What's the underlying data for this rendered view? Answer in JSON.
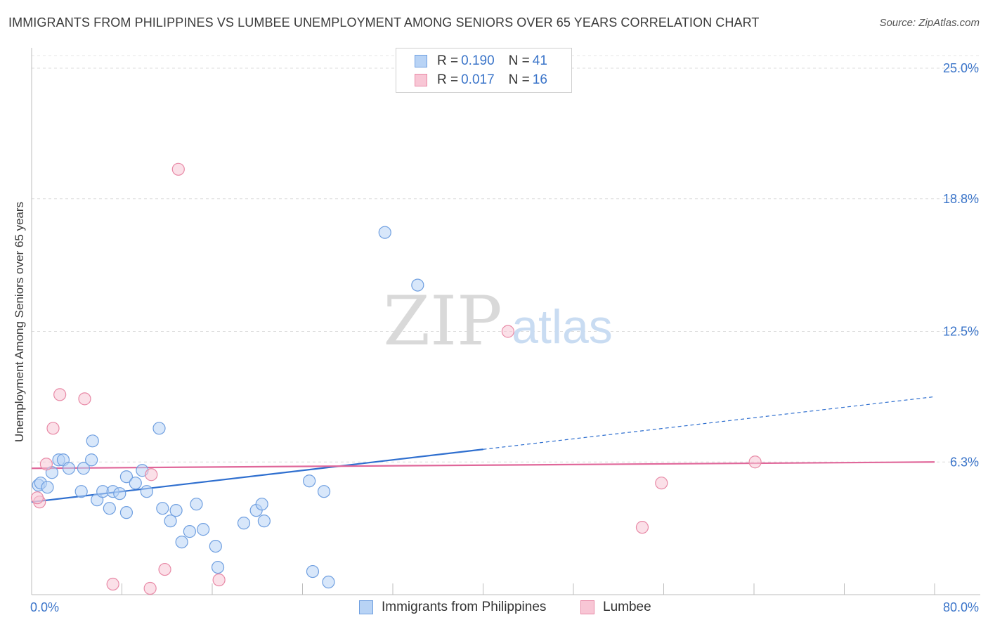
{
  "title": "IMMIGRANTS FROM PHILIPPINES VS LUMBEE UNEMPLOYMENT AMONG SENIORS OVER 65 YEARS CORRELATION CHART",
  "source": "Source: ZipAtlas.com",
  "watermark": {
    "zip": "ZIP",
    "atlas": "atlas"
  },
  "legend": {
    "rows": [
      {
        "r_label": "R = ",
        "r_value": "0.190",
        "n_label": "N = ",
        "n_value": "41"
      },
      {
        "r_label": "R = ",
        "r_value": "0.017",
        "n_label": "N = ",
        "n_value": "16"
      }
    ]
  },
  "chart_data": {
    "type": "scatter",
    "title": "IMMIGRANTS FROM PHILIPPINES VS LUMBEE UNEMPLOYMENT AMONG SENIORS OVER 65 YEARS CORRELATION CHART",
    "xlabel": "",
    "ylabel": "Unemployment Among Seniors over 65 years",
    "xlim": [
      0,
      80
    ],
    "ylim": [
      0,
      25
    ],
    "y_ticks": [
      6.3,
      12.5,
      18.8,
      25.0
    ],
    "y_tick_labels": [
      "6.3%",
      "12.5%",
      "18.8%",
      "25.0%"
    ],
    "x_tick_labels": [
      "0.0%",
      "80.0%"
    ],
    "legend_position": "top-center",
    "series": [
      {
        "name": "Immigrants from Philippines",
        "color": "#6f9fe0",
        "fill": "#b8d3f5",
        "trend_color": "#2f6fcf",
        "trend": {
          "x0": 0,
          "y0": 4.4,
          "x1": 40,
          "y1": 6.9,
          "dashed_to_x": 80,
          "dashed_to_y": 9.4
        },
        "points": [
          [
            0.6,
            5.2
          ],
          [
            0.8,
            5.3
          ],
          [
            1.4,
            5.1
          ],
          [
            1.8,
            5.8
          ],
          [
            2.4,
            6.4
          ],
          [
            2.8,
            6.4
          ],
          [
            3.3,
            6.0
          ],
          [
            4.4,
            4.9
          ],
          [
            4.6,
            6.0
          ],
          [
            5.3,
            6.4
          ],
          [
            5.4,
            7.3
          ],
          [
            5.8,
            4.5
          ],
          [
            6.3,
            4.9
          ],
          [
            6.9,
            4.1
          ],
          [
            7.2,
            4.9
          ],
          [
            7.8,
            4.8
          ],
          [
            8.4,
            3.9
          ],
          [
            8.4,
            5.6
          ],
          [
            9.2,
            5.3
          ],
          [
            9.8,
            5.9
          ],
          [
            10.2,
            4.9
          ],
          [
            11.3,
            7.9
          ],
          [
            11.6,
            4.1
          ],
          [
            12.3,
            3.5
          ],
          [
            12.8,
            4.0
          ],
          [
            13.3,
            2.5
          ],
          [
            14.0,
            3.0
          ],
          [
            14.6,
            4.3
          ],
          [
            15.2,
            3.1
          ],
          [
            16.3,
            2.3
          ],
          [
            16.5,
            1.3
          ],
          [
            18.8,
            3.4
          ],
          [
            19.9,
            4.0
          ],
          [
            20.4,
            4.3
          ],
          [
            20.6,
            3.5
          ],
          [
            24.6,
            5.4
          ],
          [
            24.9,
            1.1
          ],
          [
            25.9,
            4.9
          ],
          [
            26.3,
            0.6
          ],
          [
            31.3,
            17.2
          ],
          [
            34.2,
            14.7
          ]
        ]
      },
      {
        "name": "Lumbee",
        "color": "#e889a6",
        "fill": "#f8c6d5",
        "trend_color": "#e0679a",
        "trend": {
          "x0": 0,
          "y0": 6.0,
          "x1": 80,
          "y1": 6.3
        },
        "points": [
          [
            0.7,
            4.4
          ],
          [
            1.3,
            6.2
          ],
          [
            1.9,
            7.9
          ],
          [
            2.5,
            9.5
          ],
          [
            4.7,
            9.3
          ],
          [
            7.2,
            0.5
          ],
          [
            10.5,
            0.3
          ],
          [
            11.8,
            1.2
          ],
          [
            10.6,
            5.7
          ],
          [
            13.0,
            20.2
          ],
          [
            16.6,
            0.7
          ],
          [
            42.2,
            12.5
          ],
          [
            54.1,
            3.2
          ],
          [
            55.8,
            5.3
          ],
          [
            64.1,
            6.3
          ],
          [
            0.5,
            4.6
          ]
        ]
      }
    ]
  }
}
